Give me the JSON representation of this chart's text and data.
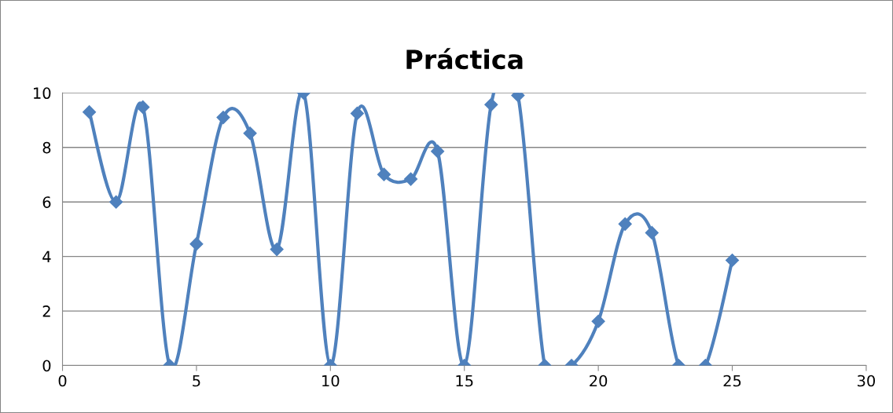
{
  "chart_data": {
    "type": "line",
    "title": "Práctica",
    "x": [
      1,
      2,
      3,
      4,
      5,
      6,
      7,
      8,
      9,
      10,
      11,
      12,
      13,
      14,
      15,
      16,
      17,
      18,
      19,
      20,
      21,
      22,
      23,
      24,
      25
    ],
    "series": [
      {
        "color": "#4f81bd",
        "values": [
          9.3,
          6.0,
          9.48,
          0,
          4.46,
          9.1,
          8.52,
          4.26,
          10,
          0,
          9.25,
          7.01,
          6.84,
          7.86,
          0,
          9.57,
          9.91,
          0,
          0,
          1.62,
          5.19,
          4.87,
          0,
          0,
          3.86
        ]
      }
    ],
    "xlim": [
      0,
      30
    ],
    "xticks": [
      0,
      5,
      10,
      15,
      20,
      25,
      30
    ],
    "ylim": [
      0,
      10
    ],
    "yticks": [
      0,
      2,
      4,
      6,
      8,
      10
    ],
    "grid": "y",
    "marker": "diamond",
    "line_style": "solid",
    "legend": false
  }
}
